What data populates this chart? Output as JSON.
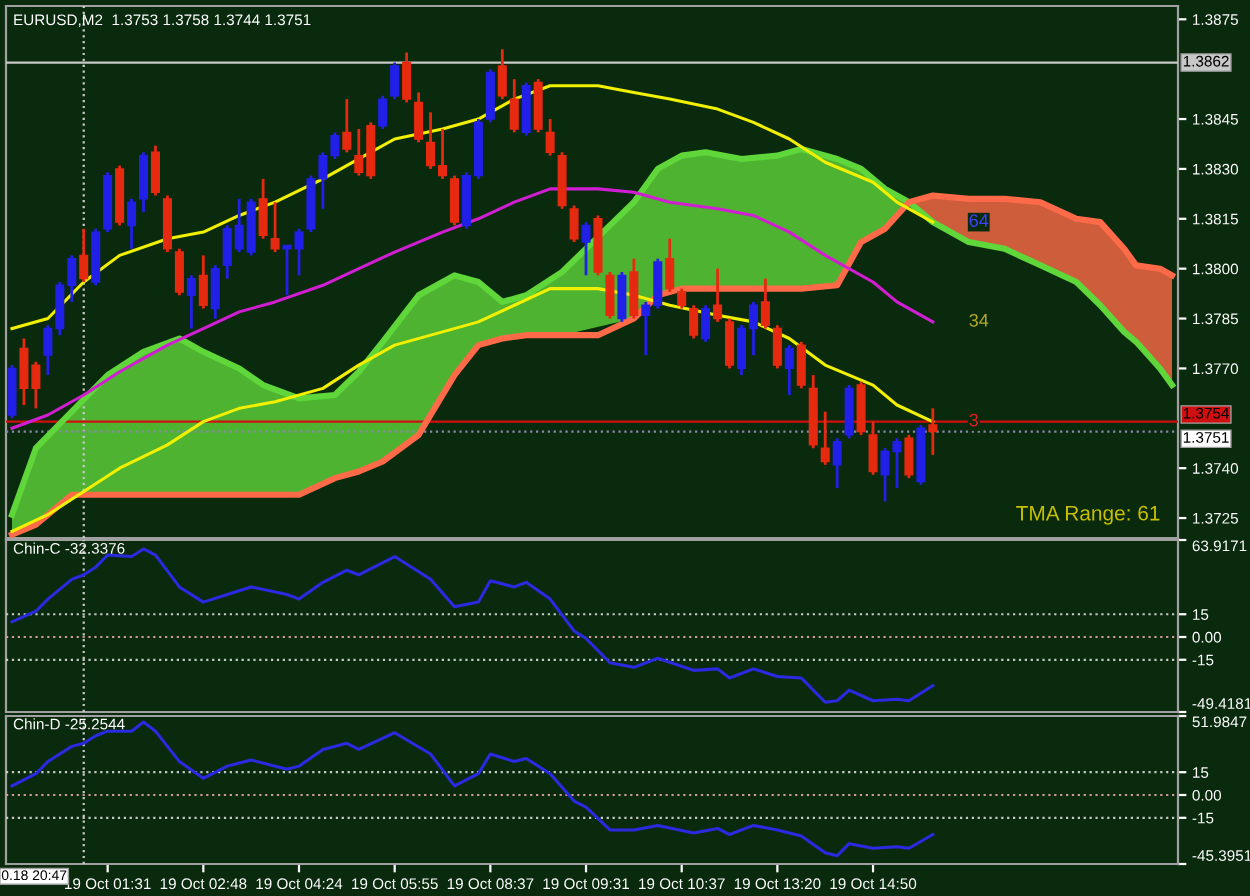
{
  "chart_data": [
    {
      "type": "candlestick",
      "title": "EURUSD,M2  1.3753 1.3758 1.3744 1.3751",
      "tick_labels": "y",
      "categories": [
        null,
        null,
        null,
        null,
        null,
        null,
        null,
        null,
        null,
        null,
        null,
        null,
        null,
        null,
        null,
        null,
        null,
        null,
        null,
        null,
        null,
        null,
        null,
        null,
        null,
        null,
        null,
        null,
        null,
        null,
        null,
        null,
        null,
        null,
        null,
        null,
        null,
        null,
        null,
        null,
        null,
        null,
        null,
        null,
        null,
        null,
        null,
        null,
        null,
        null,
        null,
        null,
        null,
        null,
        null,
        null,
        null,
        null,
        null,
        null,
        null,
        null,
        null,
        null,
        null,
        null,
        null,
        null,
        null,
        null,
        null,
        null,
        null,
        null,
        null,
        null,
        null,
        null,
        null,
        null,
        null,
        null,
        null,
        null,
        null,
        null,
        null,
        null,
        null,
        null,
        null,
        null,
        null,
        null,
        null,
        null,
        null,
        null
      ],
      "ohlc": [
        [
          1.3756,
          1.3771,
          1.3755,
          1.377
        ],
        [
          1.3776,
          1.3779,
          1.3759,
          1.3764
        ],
        [
          1.3771,
          1.3772,
          1.3758,
          1.3764
        ],
        [
          1.3774,
          1.3783,
          1.3768,
          1.3782
        ],
        [
          1.3782,
          1.3796,
          1.378,
          1.3795
        ],
        [
          1.3795,
          1.3804,
          1.379,
          1.3803
        ],
        [
          1.3804,
          1.3812,
          1.3796,
          1.3797
        ],
        [
          1.3796,
          1.3812,
          1.3795,
          1.3811
        ],
        [
          1.3812,
          1.3829,
          1.3811,
          1.3828
        ],
        [
          1.383,
          1.3831,
          1.3813,
          1.3814
        ],
        [
          1.3813,
          1.3821,
          1.3806,
          1.382
        ],
        [
          1.3821,
          1.3835,
          1.3817,
          1.3834
        ],
        [
          1.3835,
          1.3837,
          1.3822,
          1.3823
        ],
        [
          1.3821,
          1.3822,
          1.3805,
          1.3806
        ],
        [
          1.3805,
          1.3806,
          1.3792,
          1.3793
        ],
        [
          1.3792,
          1.3798,
          1.3782,
          1.3797
        ],
        [
          1.3798,
          1.3804,
          1.3788,
          1.3789
        ],
        [
          1.3788,
          1.3801,
          1.3785,
          1.38
        ],
        [
          1.3801,
          1.3813,
          1.3797,
          1.3812
        ],
        [
          1.3806,
          1.3821,
          1.3805,
          1.3813
        ],
        [
          1.3805,
          1.3821,
          1.3804,
          1.382
        ],
        [
          1.3821,
          1.3827,
          1.3809,
          1.381
        ],
        [
          1.3809,
          1.382,
          1.3805,
          1.3806
        ],
        [
          1.3806,
          1.3807,
          1.3792,
          1.3807
        ],
        [
          1.3806,
          1.3812,
          1.3798,
          1.3811
        ],
        [
          1.3812,
          1.3828,
          1.3811,
          1.3827
        ],
        [
          1.3827,
          1.3835,
          1.3818,
          1.3834
        ],
        [
          1.3834,
          1.3841,
          1.3833,
          1.384
        ],
        [
          1.3841,
          1.3851,
          1.3835,
          1.3836
        ],
        [
          1.3834,
          1.3842,
          1.3828,
          1.3829
        ],
        [
          1.3843,
          1.3844,
          1.3827,
          1.3828
        ],
        [
          1.3843,
          1.3852,
          1.3842,
          1.3851
        ],
        [
          1.3852,
          1.3862,
          1.3851,
          1.3861
        ],
        [
          1.3862,
          1.3865,
          1.385,
          1.3851
        ],
        [
          1.385,
          1.3853,
          1.3838,
          1.3839
        ],
        [
          1.3838,
          1.3847,
          1.383,
          1.3831
        ],
        [
          1.3831,
          1.3842,
          1.3827,
          1.3828
        ],
        [
          1.3827,
          1.3828,
          1.3813,
          1.3814
        ],
        [
          1.3813,
          1.3829,
          1.3812,
          1.3828
        ],
        [
          1.3828,
          1.3845,
          1.3827,
          1.3844
        ],
        [
          1.3845,
          1.386,
          1.3844,
          1.3859
        ],
        [
          1.3861,
          1.3866,
          1.3851,
          1.3852
        ],
        [
          1.3851,
          1.3857,
          1.3841,
          1.3842
        ],
        [
          1.3841,
          1.3856,
          1.384,
          1.3855
        ],
        [
          1.3856,
          1.3857,
          1.3841,
          1.3842
        ],
        [
          1.3841,
          1.3845,
          1.3834,
          1.3835
        ],
        [
          1.3834,
          1.3835,
          1.3818,
          1.3819
        ],
        [
          1.3818,
          1.3819,
          1.3808,
          1.3809
        ],
        [
          1.3808,
          1.3814,
          1.3798,
          1.3813
        ],
        [
          1.3815,
          1.3816,
          1.3798,
          1.3799
        ],
        [
          1.3798,
          1.3799,
          1.3785,
          1.3786
        ],
        [
          1.3785,
          1.3799,
          1.3784,
          1.3798
        ],
        [
          1.3799,
          1.3803,
          1.3785,
          1.3786
        ],
        [
          1.3786,
          1.379,
          1.3774,
          1.3789
        ],
        [
          1.3789,
          1.3803,
          1.3788,
          1.3802
        ],
        [
          1.3803,
          1.3809,
          1.3793,
          1.3794
        ],
        [
          1.3793,
          1.3794,
          1.3788,
          1.3789
        ],
        [
          1.3788,
          1.3789,
          1.3779,
          1.378
        ],
        [
          1.3779,
          1.3789,
          1.3778,
          1.3788
        ],
        [
          1.3789,
          1.38,
          1.3784,
          1.3785
        ],
        [
          1.3784,
          1.3785,
          1.377,
          1.3771
        ],
        [
          1.377,
          1.3783,
          1.3768,
          1.3782
        ],
        [
          1.3782,
          1.379,
          1.3774,
          1.3789
        ],
        [
          1.379,
          1.3797,
          1.3782,
          1.3783
        ],
        [
          1.3782,
          1.3783,
          1.377,
          1.3771
        ],
        [
          1.377,
          1.3777,
          1.3762,
          1.3776
        ],
        [
          1.3777,
          1.3778,
          1.3764,
          1.3765
        ],
        [
          1.3764,
          1.3768,
          1.3746,
          1.3747
        ],
        [
          1.3746,
          1.3757,
          1.3741,
          1.3742
        ],
        [
          1.3741,
          1.3749,
          1.3734,
          1.3748
        ],
        [
          1.375,
          1.3765,
          1.3749,
          1.3764
        ],
        [
          1.3765,
          1.3766,
          1.375,
          1.3751
        ],
        [
          1.375,
          1.3754,
          1.3738,
          1.3739
        ],
        [
          1.3738,
          1.3746,
          1.373,
          1.3745
        ],
        [
          1.3745,
          1.3749,
          1.3734,
          1.3748
        ],
        [
          1.3749,
          1.375,
          1.3737,
          1.3738
        ],
        [
          1.3736,
          1.3753,
          1.3735,
          1.3752
        ],
        [
          1.3753,
          1.3758,
          1.3744,
          1.3751
        ],
        null,
        null,
        null,
        null,
        null,
        null,
        null,
        null,
        null,
        null,
        null,
        null,
        null,
        null,
        null,
        null,
        null,
        null,
        null,
        null
      ],
      "series": [
        {
          "type": "line",
          "color": "#5fd63a",
          "values": [
            1.3726,
            null,
            1.3746,
            null,
            null,
            1.3757,
            null,
            null,
            1.3768,
            null,
            null,
            1.3775,
            null,
            null,
            1.3779,
            null,
            1.3775,
            null,
            null,
            1.377,
            null,
            1.3765,
            null,
            null,
            1.3761,
            null,
            null,
            1.3762,
            null,
            1.3769,
            null,
            1.3778,
            null,
            null,
            1.3792,
            null,
            null,
            1.3798,
            null,
            1.3796,
            null,
            1.379,
            null,
            1.3792,
            null,
            null,
            1.3799,
            null,
            null,
            null,
            null,
            null,
            1.382,
            null,
            1.383,
            null,
            1.3834,
            null,
            1.3835,
            null,
            null,
            1.3833,
            null,
            null,
            1.3834,
            null,
            1.3836,
            null,
            null,
            1.3833,
            null,
            1.383,
            null,
            1.3824,
            null,
            1.382,
            null,
            1.3814,
            null,
            null,
            1.3808,
            null,
            null,
            1.3806,
            null,
            null,
            1.3801,
            null,
            null,
            1.3796,
            null,
            1.3789,
            null,
            1.3781,
            1.3778,
            null,
            1.377,
            1.3765
          ],
          "upper": [
            1.3726,
            null,
            1.3746,
            null,
            null,
            1.3757,
            null,
            null,
            1.3768,
            null,
            null,
            1.3775,
            null,
            null,
            1.3779,
            null,
            1.3775,
            null,
            null,
            1.377,
            null,
            1.3765,
            null,
            null,
            1.3761,
            null,
            null,
            1.3762,
            null,
            1.3769,
            null,
            1.3778,
            null,
            null,
            1.3792,
            null,
            null,
            1.3798,
            null,
            1.3796,
            null,
            1.379,
            null,
            1.3792,
            null,
            null,
            1.3799,
            null,
            null,
            null,
            null,
            null,
            1.382,
            null,
            1.383,
            null,
            1.3834,
            null,
            1.3835,
            null,
            null,
            1.3833,
            null,
            null,
            1.3834,
            null,
            1.3836,
            null,
            null,
            1.3833,
            null,
            1.383,
            null,
            1.3824,
            null,
            1.382,
            null,
            null,
            null,
            null,
            null,
            null,
            null,
            null,
            null,
            null,
            null,
            null,
            null,
            null,
            null,
            null,
            null,
            null,
            null,
            null,
            null,
            null
          ],
          "lower": [
            1.372,
            null,
            1.3723,
            null,
            null,
            1.3732,
            null,
            null,
            1.3732,
            null,
            null,
            1.3732,
            null,
            null,
            1.3732,
            null,
            1.3732,
            null,
            null,
            1.3732,
            null,
            1.3732,
            null,
            null,
            1.3732,
            null,
            null,
            1.3737,
            null,
            1.3739,
            null,
            1.3742,
            null,
            null,
            1.375,
            null,
            null,
            1.3768,
            null,
            1.3777,
            null,
            1.3779,
            null,
            1.378,
            null,
            null,
            1.378,
            null,
            null,
            null,
            null,
            null,
            1.3785,
            null,
            1.3792,
            null,
            1.3794,
            null,
            1.3794,
            null,
            null,
            1.3794,
            null,
            null,
            1.3794,
            null,
            1.3794,
            null,
            null,
            1.3795,
            null,
            1.3808,
            null,
            1.3812,
            null,
            1.382,
            null,
            null,
            null,
            null,
            null,
            null,
            null,
            null,
            null,
            null,
            null,
            null,
            null,
            null,
            null,
            null,
            null,
            null,
            null,
            null,
            null,
            null
          ]
        },
        {
          "type": "line",
          "color": "#ff6a48",
          "values": [
            1.372,
            null,
            1.3723,
            null,
            null,
            1.3732,
            null,
            null,
            1.3732,
            null,
            null,
            1.3732,
            null,
            null,
            1.3732,
            null,
            1.3732,
            null,
            null,
            1.3732,
            null,
            1.3732,
            null,
            null,
            1.3732,
            null,
            null,
            1.3737,
            null,
            1.3739,
            null,
            1.3742,
            null,
            null,
            1.375,
            null,
            null,
            1.3768,
            null,
            1.3777,
            null,
            1.3779,
            null,
            1.378,
            null,
            null,
            1.378,
            null,
            null,
            1.378,
            null,
            null,
            1.3785,
            null,
            1.3792,
            null,
            1.3794,
            null,
            1.3794,
            null,
            null,
            1.3794,
            null,
            null,
            1.3794,
            null,
            1.3794,
            null,
            null,
            1.3795,
            null,
            1.3808,
            null,
            1.3812,
            null,
            1.382,
            null,
            1.3822,
            null,
            null,
            1.3821,
            null,
            null,
            1.3821,
            null,
            null,
            1.382,
            null,
            null,
            1.3815,
            null,
            1.3814,
            null,
            1.3806,
            1.3801,
            null,
            1.38,
            1.3798
          ],
          "upper": [
            null,
            null,
            null,
            null,
            null,
            null,
            null,
            null,
            null,
            null,
            null,
            null,
            null,
            null,
            null,
            null,
            null,
            null,
            null,
            null,
            null,
            null,
            null,
            null,
            null,
            null,
            null,
            null,
            null,
            null,
            null,
            null,
            null,
            null,
            null,
            null,
            null,
            null,
            null,
            null,
            null,
            null,
            null,
            null,
            null,
            null,
            null,
            null,
            null,
            null,
            null,
            null,
            null,
            null,
            null,
            null,
            null,
            null,
            null,
            null,
            null,
            null,
            null,
            null,
            null,
            null,
            null,
            null,
            null,
            null,
            null,
            null,
            null,
            null,
            null,
            1.382,
            null,
            1.3822,
            null,
            null,
            1.3821,
            null,
            null,
            1.3821,
            null,
            null,
            1.382,
            null,
            null,
            1.3815,
            null,
            1.3814,
            null,
            1.3806,
            1.3801,
            null,
            1.38,
            1.3798
          ],
          "lower": [
            null,
            null,
            null,
            null,
            null,
            null,
            null,
            null,
            null,
            null,
            null,
            null,
            null,
            null,
            null,
            null,
            null,
            null,
            null,
            null,
            null,
            null,
            null,
            null,
            null,
            null,
            null,
            null,
            null,
            null,
            null,
            null,
            null,
            null,
            null,
            null,
            null,
            null,
            null,
            null,
            null,
            null,
            null,
            null,
            null,
            null,
            null,
            null,
            null,
            null,
            null,
            null,
            null,
            null,
            null,
            null,
            null,
            null,
            null,
            null,
            null,
            null,
            null,
            null,
            null,
            null,
            null,
            null,
            null,
            null,
            null,
            null,
            null,
            null,
            null,
            1.382,
            null,
            1.3814,
            null,
            null,
            1.3808,
            null,
            null,
            1.3806,
            null,
            null,
            1.3801,
            null,
            null,
            1.3796,
            null,
            1.3789,
            null,
            1.3781,
            1.3778,
            null,
            1.377,
            1.3765
          ]
        },
        {
          "type": "line",
          "name": "64",
          "color": "#f0f000",
          "values": [
            1.3782,
            null,
            null,
            1.3785,
            null,
            null,
            1.3796,
            null,
            null,
            1.3804,
            null,
            null,
            null,
            1.3809,
            null,
            null,
            1.3811,
            null,
            null,
            1.3816,
            null,
            null,
            1.382,
            null,
            null,
            null,
            1.3827,
            null,
            null,
            1.3833,
            null,
            null,
            1.3839,
            null,
            null,
            null,
            1.3842,
            null,
            null,
            1.3845,
            null,
            null,
            1.3851,
            null,
            null,
            1.3855,
            null,
            null,
            null,
            1.3855,
            null,
            null,
            1.3853,
            null,
            null,
            1.3851,
            null,
            null,
            null,
            1.3848,
            null,
            null,
            1.3844,
            null,
            null,
            1.3839,
            null,
            null,
            1.3832,
            null,
            null,
            null,
            1.3826,
            null,
            1.382,
            null,
            null,
            1.3814,
            null,
            null,
            null,
            null,
            null,
            null,
            null,
            null,
            null,
            null,
            null,
            null,
            null,
            null,
            null,
            null,
            null,
            null,
            null,
            null
          ]
        },
        {
          "type": "line",
          "name": "34",
          "color": "#d21ed2",
          "values": [
            1.3752,
            null,
            null,
            1.3756,
            null,
            null,
            1.3762,
            null,
            null,
            1.3769,
            null,
            null,
            null,
            1.3777,
            null,
            null,
            1.3782,
            null,
            null,
            1.3787,
            null,
            null,
            1.379,
            null,
            null,
            null,
            1.3795,
            null,
            null,
            1.38,
            null,
            null,
            1.3805,
            null,
            null,
            null,
            1.3811,
            null,
            null,
            1.3815,
            null,
            null,
            1.382,
            null,
            null,
            1.3824,
            null,
            null,
            null,
            1.3824,
            null,
            null,
            1.3823,
            null,
            null,
            1.382,
            null,
            null,
            null,
            1.3818,
            null,
            null,
            1.3816,
            null,
            null,
            1.3811,
            null,
            null,
            1.3804,
            null,
            null,
            null,
            1.3796,
            null,
            1.379,
            null,
            null,
            1.3784,
            null,
            null,
            null,
            null,
            null,
            null,
            null,
            null,
            null,
            null,
            null,
            null,
            null,
            null,
            null,
            null,
            null,
            null,
            null,
            null
          ]
        },
        {
          "type": "line",
          "name": "3",
          "color": "#f0f000",
          "values": [
            1.3721,
            null,
            null,
            1.3726,
            null,
            null,
            1.3733,
            null,
            null,
            1.374,
            null,
            null,
            null,
            1.3747,
            null,
            null,
            1.3754,
            null,
            null,
            1.3758,
            null,
            null,
            1.376,
            null,
            null,
            null,
            1.3764,
            null,
            null,
            1.3771,
            null,
            null,
            1.3777,
            null,
            null,
            null,
            1.3781,
            null,
            null,
            1.3784,
            null,
            null,
            1.3789,
            null,
            null,
            1.3794,
            null,
            null,
            null,
            1.3794,
            null,
            null,
            1.3792,
            null,
            null,
            1.3789,
            null,
            null,
            null,
            1.3786,
            null,
            null,
            1.3784,
            null,
            null,
            1.3779,
            null,
            null,
            1.3771,
            null,
            null,
            null,
            1.3765,
            null,
            1.3759,
            null,
            null,
            1.3754,
            null,
            null,
            null,
            null,
            null,
            null,
            null,
            null,
            null,
            null,
            null,
            null,
            null,
            null,
            null,
            null,
            null,
            null,
            null,
            null
          ]
        }
      ],
      "ylim": [
        1.3719,
        1.3879
      ],
      "yticks": [
        1.3725,
        {
          "value": 1.374,
          "label": "1.3740"
        },
        {
          "value": 1.377,
          "label": "1.3770"
        },
        1.3785,
        {
          "value": 1.38,
          "label": "1.3800"
        },
        1.3815,
        {
          "value": 1.383,
          "label": "1.3830"
        },
        1.3845,
        1.3875
      ],
      "ref_lines": [
        {
          "axis": "y",
          "value": 1.3862,
          "label": "1.3862",
          "color": "#c8c8c8"
        },
        {
          "axis": "y",
          "value": 1.3754,
          "label": "1.3754",
          "color": "#d01010"
        },
        {
          "axis": "y",
          "value": 1.3751,
          "label": "1.3751",
          "color": "#8888aa",
          "line_style": "dotted"
        }
      ],
      "annotations": [
        "TMA Range: 61"
      ]
    },
    {
      "type": "line",
      "title": "Chin-C -32.3376",
      "tick_labels": "y",
      "categories": [
        null,
        null,
        null,
        null,
        null,
        null,
        null,
        null,
        null,
        null,
        null,
        null,
        null,
        null,
        null,
        null,
        null,
        null,
        null,
        null,
        null,
        null,
        null,
        null,
        null,
        null,
        null,
        null,
        null,
        null,
        null,
        null,
        null,
        null,
        null,
        null,
        null,
        null,
        null,
        null,
        null,
        null,
        null,
        null,
        null,
        null,
        null,
        null,
        null,
        null,
        null,
        null,
        null,
        null,
        null,
        null,
        null,
        null,
        null,
        null,
        null,
        null,
        null,
        null,
        null,
        null,
        null,
        null,
        null,
        null,
        null,
        null,
        null,
        null,
        null,
        null,
        null,
        null,
        null,
        null,
        null,
        null,
        null,
        null,
        null,
        null,
        null,
        null,
        null,
        null,
        null,
        null,
        null,
        null,
        null,
        null,
        null,
        null
      ],
      "series": [
        {
          "color": "#2a2ae0",
          "values": [
            10,
            null,
            17,
            25,
            null,
            38,
            41,
            46,
            54,
            null,
            53,
            58,
            54,
            null,
            33,
            null,
            23,
            null,
            28,
            null,
            33,
            null,
            null,
            28,
            25,
            null,
            36,
            null,
            44,
            41,
            null,
            null,
            53,
            null,
            null,
            38,
            null,
            20,
            null,
            23,
            37,
            null,
            33,
            36,
            null,
            25,
            null,
            4,
            -1,
            null,
            -17,
            null,
            -20,
            null,
            -14,
            null,
            null,
            -22,
            null,
            -21,
            -27,
            null,
            -21,
            null,
            -26,
            null,
            -27,
            null,
            -43,
            -42,
            -35,
            null,
            -42,
            null,
            -41,
            -42,
            null,
            -32,
            null,
            null,
            null,
            null,
            null,
            null,
            null,
            null,
            null,
            null,
            null,
            null,
            null,
            null,
            null,
            null,
            null,
            null,
            null,
            null
          ]
        }
      ],
      "ylim": [
        -49.4181,
        63.9171
      ],
      "yticks": [
        63.9171,
        15,
        {
          "value": 0,
          "label": "0.00"
        },
        -15,
        -49.4181
      ],
      "ref_lines": [
        {
          "axis": "y",
          "value": 15,
          "color": "#c8c8c8",
          "line_style": "dotted"
        },
        {
          "axis": "y",
          "value": 0,
          "color": "#d09aa0",
          "line_style": "dotted"
        },
        {
          "axis": "y",
          "value": -15,
          "color": "#c8c8c8",
          "line_style": "dotted"
        }
      ]
    },
    {
      "type": "line",
      "title": "Chin-D -25.2544",
      "categories": [
        null,
        null,
        null,
        null,
        null,
        null,
        null,
        null,
        "19 Oct 01:31",
        null,
        null,
        null,
        null,
        null,
        null,
        null,
        "19 Oct 02:48",
        null,
        null,
        null,
        null,
        null,
        null,
        null,
        "19 Oct 04:24",
        null,
        null,
        null,
        null,
        null,
        null,
        null,
        "19 Oct 05:55",
        null,
        null,
        null,
        null,
        null,
        null,
        null,
        "19 Oct 08:37",
        null,
        null,
        null,
        null,
        null,
        null,
        null,
        "19 Oct 09:31",
        null,
        null,
        null,
        null,
        null,
        null,
        null,
        "19 Oct 10:37",
        null,
        null,
        null,
        null,
        null,
        null,
        null,
        "19 Oct 13:20",
        null,
        null,
        null,
        null,
        null,
        null,
        null,
        "19 Oct 14:50",
        null,
        null,
        null,
        null,
        null,
        null,
        null,
        null,
        null,
        null,
        null,
        null,
        null,
        null,
        null,
        null,
        null,
        null,
        null,
        null,
        null,
        null,
        null,
        null,
        null
      ],
      "series": [
        {
          "color": "#2a2ae0",
          "values": [
            6,
            null,
            14,
            22,
            null,
            32,
            34,
            39,
            42,
            null,
            42,
            48,
            42,
            null,
            22,
            null,
            11,
            null,
            19,
            null,
            23,
            null,
            null,
            17,
            19,
            null,
            30,
            null,
            34,
            30,
            null,
            null,
            41,
            null,
            null,
            27,
            null,
            6,
            null,
            14,
            27,
            null,
            22,
            24,
            null,
            14,
            null,
            -4,
            -8,
            null,
            -23,
            null,
            -23,
            null,
            -20,
            null,
            null,
            -25,
            null,
            -22,
            -26,
            null,
            -20,
            null,
            -23,
            null,
            -27,
            null,
            -38,
            -40,
            -32,
            null,
            -35,
            null,
            -34,
            -35,
            null,
            -26,
            null,
            null,
            null,
            null,
            null,
            null,
            null,
            null,
            null,
            null,
            null,
            null,
            null,
            null,
            null,
            null,
            null,
            null,
            null,
            null
          ]
        }
      ],
      "ylim": [
        -45.3951,
        51.9847
      ],
      "yticks": [
        51.9847,
        15,
        {
          "value": 0,
          "label": "0.00"
        },
        -15,
        -45.3951
      ],
      "ref_lines": [
        {
          "axis": "y",
          "value": 15,
          "color": "#c8c8c8",
          "line_style": "dotted"
        },
        {
          "axis": "y",
          "value": 0,
          "color": "#d09aa0",
          "line_style": "dotted"
        },
        {
          "axis": "y",
          "value": -15,
          "color": "#c8c8c8",
          "line_style": "dotted"
        }
      ],
      "annotations": [
        "0.18 20:47"
      ]
    }
  ]
}
